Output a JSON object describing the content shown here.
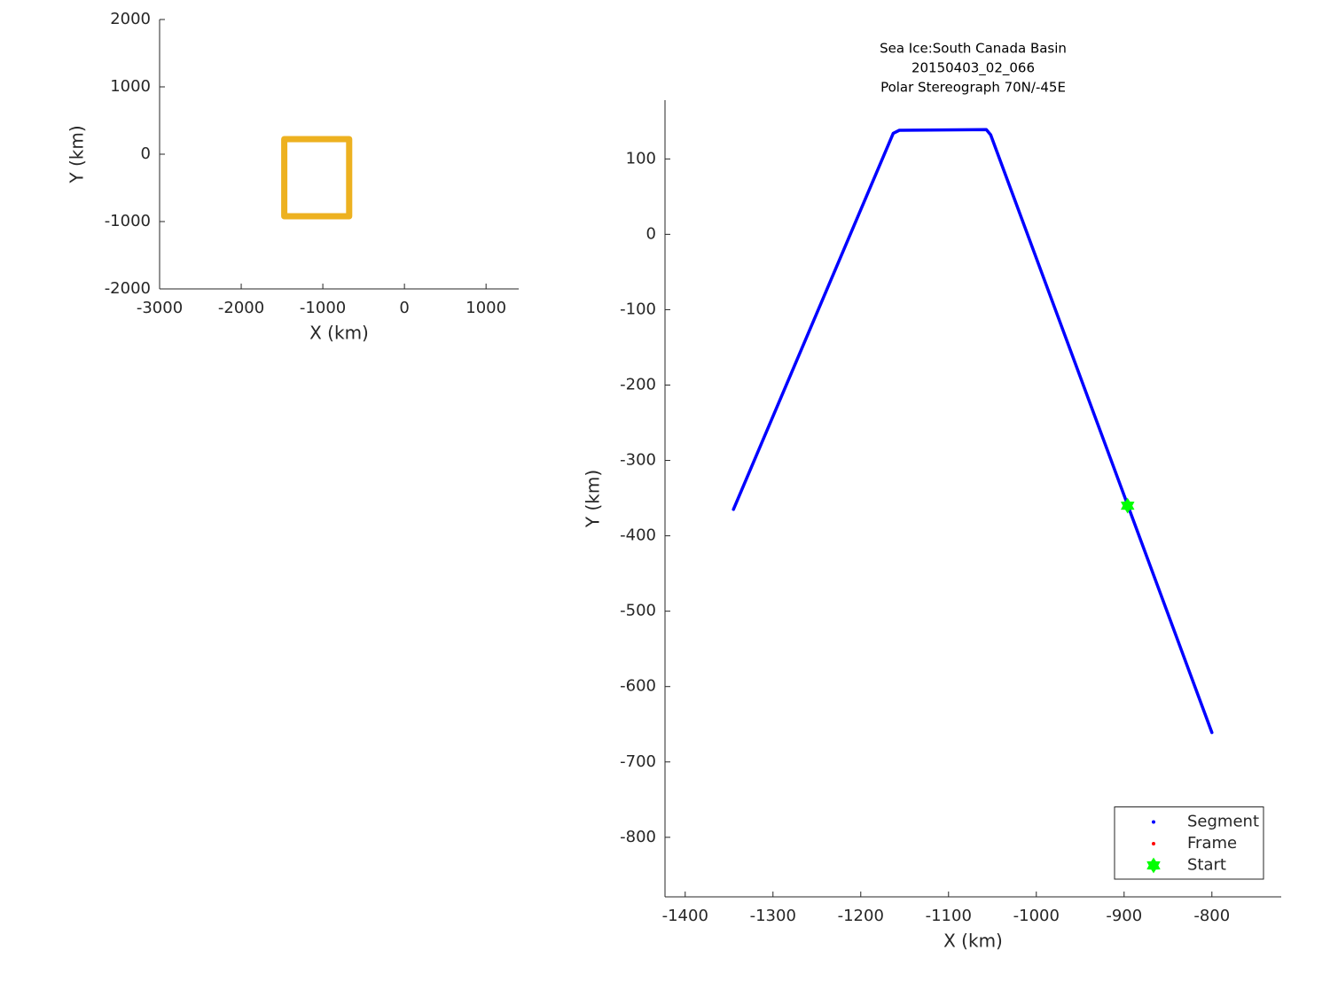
{
  "chart_data": [
    {
      "type": "line",
      "xlabel": "X (km)",
      "ylabel": "Y (km)",
      "xlim": [
        -3000,
        1400
      ],
      "ylim": [
        -2000,
        2000
      ],
      "xticks": [
        -3000,
        -2000,
        -1000,
        0,
        1000
      ],
      "yticks": [
        -2000,
        -1000,
        0,
        1000,
        2000
      ],
      "grid": false,
      "series": [
        {
          "color": "#edb120",
          "linestyle": "-",
          "marker": "none",
          "x": [
            -1473,
            -677,
            -677,
            -1473,
            -1473
          ],
          "y": [
            224,
            224,
            -921,
            -921,
            224
          ]
        }
      ]
    },
    {
      "type": "line",
      "title": [
        "Sea Ice:South Canada Basin",
        "20150403_02_066",
        "Polar Stereograph 70N/-45E"
      ],
      "xlabel": "X (km)",
      "ylabel": "Y (km)",
      "xlim": [
        -1423,
        -721
      ],
      "ylim": [
        -879,
        178
      ],
      "xticks": [
        -1400,
        -1300,
        -1200,
        -1100,
        -1000,
        -900,
        -800
      ],
      "yticks": [
        -800,
        -700,
        -600,
        -500,
        -400,
        -300,
        -200,
        -100,
        0,
        100
      ],
      "grid": false,
      "legend": "lower right",
      "series": [
        {
          "name": "Segment",
          "color": "#0000ff",
          "linestyle": "-",
          "marker": ".",
          "x": [
            -1345,
            -1163,
            -1156,
            -1057,
            -1052,
            -800
          ],
          "y": [
            -365,
            134,
            138,
            139,
            132,
            -661
          ]
        },
        {
          "name": "Frame",
          "color": "#ff0000",
          "linestyle": "none",
          "marker": ".",
          "x": [],
          "y": []
        },
        {
          "name": "Start",
          "color": "#00ff00",
          "linestyle": "none",
          "marker": "hexagram",
          "x": [
            -896
          ],
          "y": [
            -360
          ]
        }
      ]
    }
  ]
}
